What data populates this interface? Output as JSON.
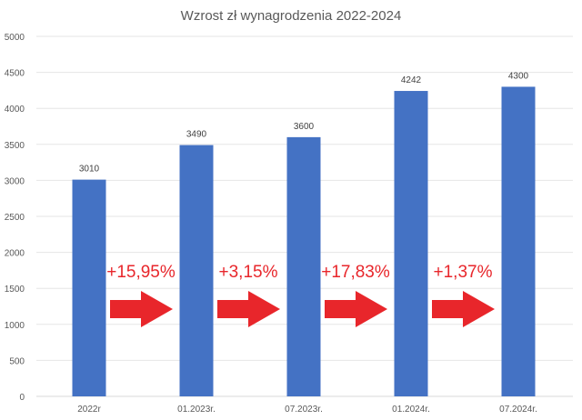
{
  "chart_data": {
    "type": "bar",
    "title": "Wzrost zł wynagrodzenia 2022-2024",
    "categories": [
      "2022r",
      "01.2023r.",
      "07.2023r.",
      "01.2024r.",
      "07.2024r."
    ],
    "values": [
      3010,
      3490,
      3600,
      4242,
      4300
    ],
    "data_labels": [
      "3010",
      "3490",
      "3600",
      "4242",
      "4300"
    ],
    "ylim": [
      0,
      5000
    ],
    "yticks": [
      "0",
      "500",
      "1000",
      "1500",
      "2000",
      "2500",
      "3000",
      "3500",
      "4000",
      "4500",
      "5000"
    ],
    "grid": true,
    "legend": "none",
    "bar_color": "#4472c4",
    "annotations": [
      "+15,95%",
      "+3,15%",
      "+17,83%",
      "+1,37%"
    ],
    "annotation_color": "#e8262b",
    "annotation_icon": "arrow-right-icon"
  }
}
